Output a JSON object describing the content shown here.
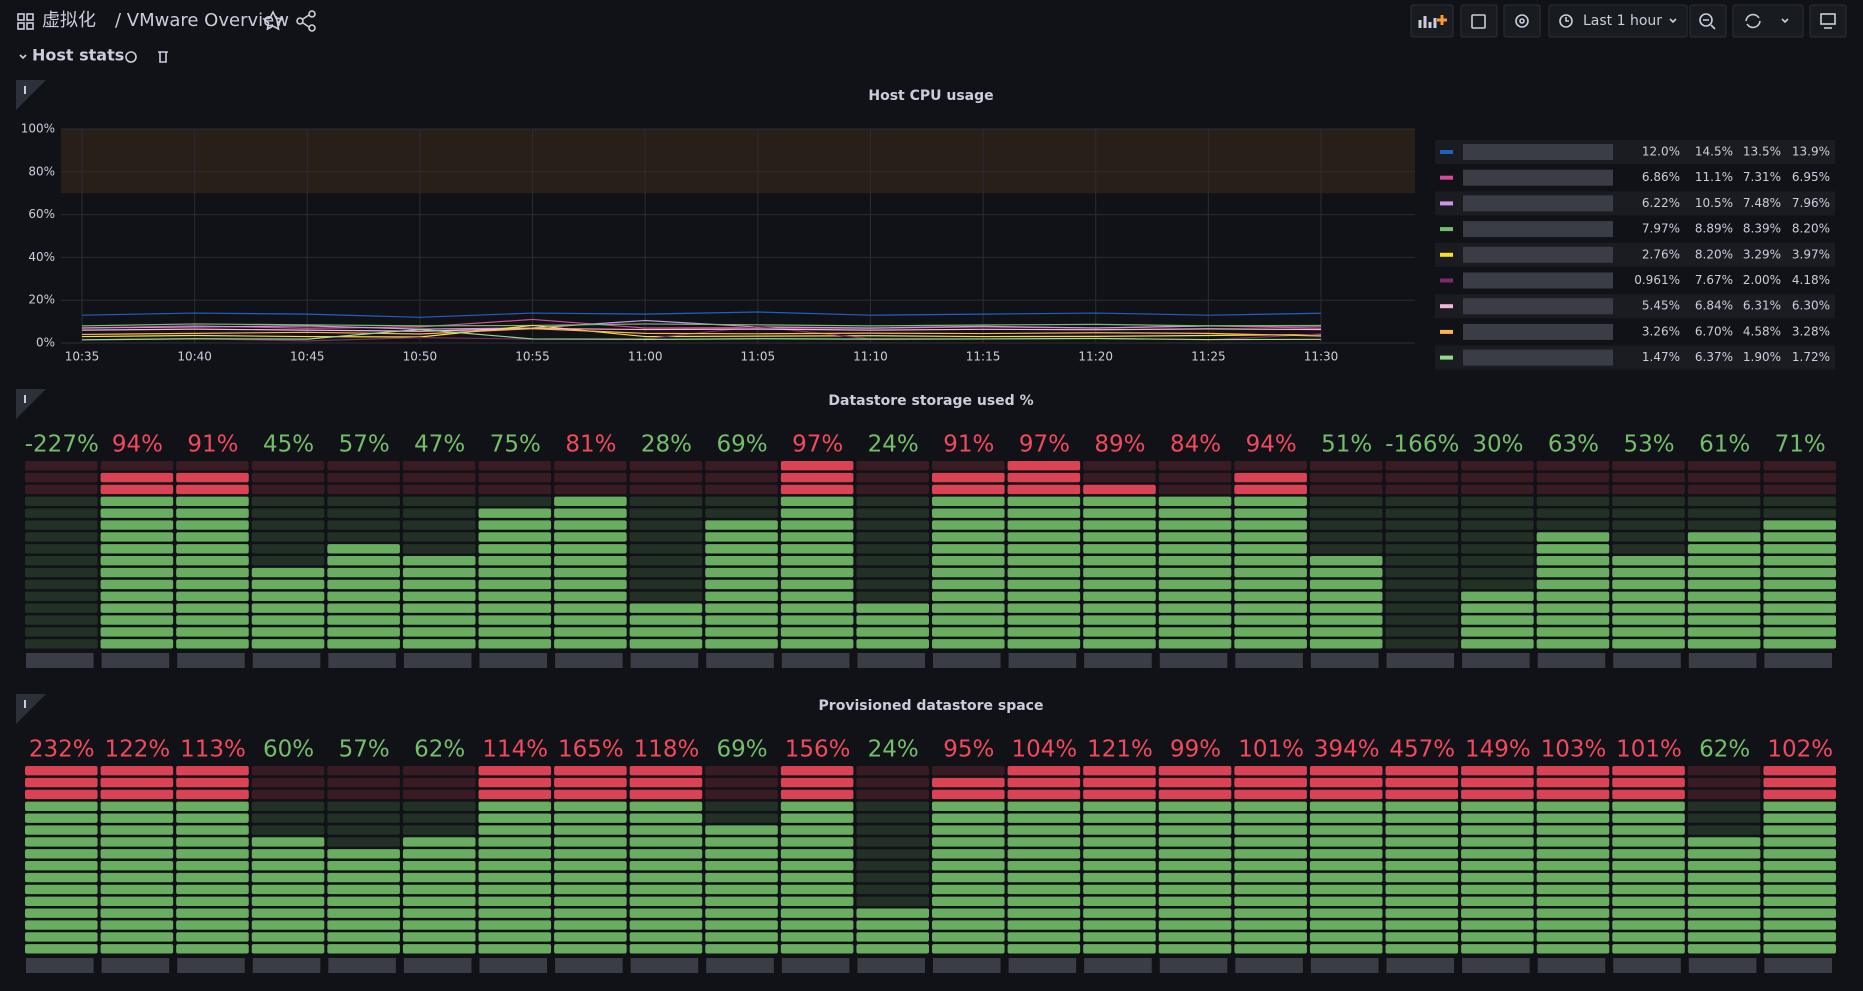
{
  "header": {
    "folder": "虚拟化",
    "title": "/ VMware Overview",
    "time_range": "Last 1 hour"
  },
  "row": {
    "title": "Host stats"
  },
  "chart_data": [
    {
      "type": "line",
      "title": "Host CPU usage",
      "x": [
        "10:35",
        "10:40",
        "10:45",
        "10:50",
        "10:55",
        "11:00",
        "11:05",
        "11:10",
        "11:15",
        "11:20",
        "11:25",
        "11:30"
      ],
      "ylim": [
        0,
        100
      ],
      "yticks": [
        {
          "value": 0,
          "label": "0%"
        },
        {
          "value": 20,
          "label": "20%"
        },
        {
          "value": 40,
          "label": "40%"
        },
        {
          "value": 60,
          "label": "60%"
        },
        {
          "value": 80,
          "label": "80%"
        },
        {
          "value": 100,
          "label": "100%"
        }
      ],
      "grid": true,
      "threshold_band": [
        70,
        100
      ],
      "series": [
        {
          "color": "#1f60c4",
          "values": [
            13,
            14,
            13.5,
            12,
            14,
            13.5,
            14.5,
            13,
            13.5,
            14,
            13,
            13.9
          ],
          "legend": [
            "12.0%",
            "14.5%",
            "13.5%",
            "13.9%"
          ]
        },
        {
          "color": "#d44a9a",
          "values": [
            7,
            8,
            6.9,
            7.5,
            11,
            7,
            7.2,
            6.9,
            7.5,
            7,
            8,
            6.95
          ],
          "legend": [
            "6.86%",
            "11.1%",
            "7.31%",
            "6.95%"
          ]
        },
        {
          "color": "#ca95e5",
          "values": [
            7,
            7.5,
            8,
            6.5,
            7,
            10.5,
            7.5,
            7,
            7.8,
            7,
            8,
            7.96
          ],
          "legend": [
            "6.22%",
            "10.5%",
            "7.48%",
            "7.96%"
          ]
        },
        {
          "color": "#73bf69",
          "values": [
            8,
            8.9,
            8.5,
            8,
            8.2,
            8.9,
            8.5,
            8,
            8.4,
            8.7,
            8,
            8.2
          ],
          "legend": [
            "7.97%",
            "8.89%",
            "8.39%",
            "8.20%"
          ]
        },
        {
          "color": "#fade2a",
          "values": [
            3,
            3.5,
            3,
            2.8,
            8.2,
            3,
            3.2,
            3.4,
            3,
            3.1,
            3.5,
            3.97
          ],
          "legend": [
            "2.76%",
            "8.20%",
            "3.29%",
            "3.97%"
          ]
        },
        {
          "color": "#7b2a6e",
          "values": [
            1.5,
            2,
            1,
            2.5,
            1.8,
            2,
            7.67,
            2,
            1.9,
            2.2,
            1.5,
            4.18
          ],
          "legend": [
            "0.961%",
            "7.67%",
            "2.00%",
            "4.18%"
          ]
        },
        {
          "color": "#f7b5d6",
          "values": [
            6,
            6.5,
            6,
            5.5,
            6.8,
            6.3,
            6.5,
            6,
            6.4,
            6.2,
            6.6,
            6.3
          ],
          "legend": [
            "5.45%",
            "6.84%",
            "6.31%",
            "6.30%"
          ]
        },
        {
          "color": "#ffb357",
          "values": [
            4,
            4.5,
            5,
            4.2,
            6.7,
            4.5,
            4.3,
            4.6,
            4.4,
            4.8,
            4.5,
            3.28
          ],
          "legend": [
            "3.26%",
            "6.70%",
            "4.58%",
            "3.28%"
          ]
        },
        {
          "color": "#96d98d",
          "values": [
            1.5,
            2,
            1.8,
            6.37,
            1.9,
            1.7,
            2,
            1.8,
            1.9,
            2.1,
            1.6,
            1.72
          ],
          "legend": [
            "1.47%",
            "6.37%",
            "1.90%",
            "1.72%"
          ]
        }
      ]
    },
    {
      "type": "bargauge",
      "title": "Datastore storage used %",
      "values": [
        -227,
        94,
        91,
        45,
        57,
        47,
        75,
        81,
        28,
        69,
        97,
        24,
        91,
        97,
        89,
        84,
        94,
        51,
        -166,
        30,
        63,
        53,
        61,
        71
      ],
      "value_labels": [
        "-227%",
        "94%",
        "91%",
        "45%",
        "57%",
        "47%",
        "75%",
        "81%",
        "28%",
        "69%",
        "97%",
        "24%",
        "91%",
        "97%",
        "89%",
        "84%",
        "94%",
        "51%",
        "-166%",
        "30%",
        "63%",
        "53%",
        "61%",
        "71%"
      ],
      "min": 0,
      "max": 100,
      "threshold": 80,
      "ok_color": "#73bf69",
      "warn_color": "#f2495c"
    },
    {
      "type": "bargauge",
      "title": "Provisioned datastore space",
      "values": [
        232,
        122,
        113,
        60,
        57,
        62,
        114,
        165,
        118,
        69,
        156,
        24,
        95,
        104,
        121,
        99,
        101,
        394,
        457,
        149,
        103,
        101,
        62,
        102
      ],
      "value_labels": [
        "232%",
        "122%",
        "113%",
        "60%",
        "57%",
        "62%",
        "114%",
        "165%",
        "118%",
        "69%",
        "156%",
        "24%",
        "95%",
        "104%",
        "121%",
        "99%",
        "101%",
        "394%",
        "457%",
        "149%",
        "103%",
        "101%",
        "62%",
        "102%"
      ],
      "min": 0,
      "max": 100,
      "threshold": 80,
      "ok_color": "#73bf69",
      "warn_color": "#f2495c"
    }
  ]
}
